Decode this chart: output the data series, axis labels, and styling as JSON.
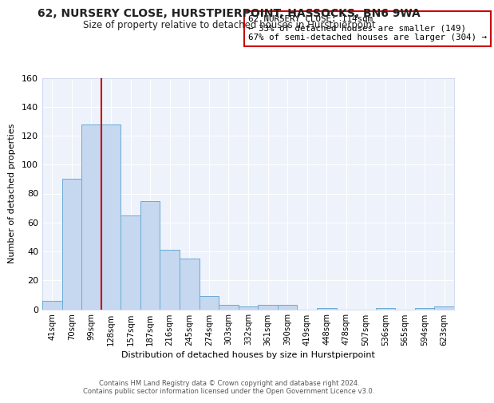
{
  "title": "62, NURSERY CLOSE, HURSTPIERPOINT, HASSOCKS, BN6 9WA",
  "subtitle": "Size of property relative to detached houses in Hurstpierpoint",
  "xlabel": "Distribution of detached houses by size in Hurstpierpoint",
  "ylabel": "Number of detached properties",
  "bar_labels": [
    "41sqm",
    "70sqm",
    "99sqm",
    "128sqm",
    "157sqm",
    "187sqm",
    "216sqm",
    "245sqm",
    "274sqm",
    "303sqm",
    "332sqm",
    "361sqm",
    "390sqm",
    "419sqm",
    "448sqm",
    "478sqm",
    "507sqm",
    "536sqm",
    "565sqm",
    "594sqm",
    "623sqm"
  ],
  "bar_values": [
    6,
    90,
    128,
    128,
    65,
    75,
    41,
    35,
    9,
    3,
    2,
    3,
    3,
    0,
    1,
    0,
    0,
    1,
    0,
    1,
    2
  ],
  "bar_color": "#c5d8f0",
  "bar_edge_color": "#6aaad4",
  "vline_color": "#cc0000",
  "annotation_box_text": "62 NURSERY CLOSE: 114sqm\n← 33% of detached houses are smaller (149)\n67% of semi-detached houses are larger (304) →",
  "annotation_box_edge_color": "#cc0000",
  "ylim": [
    0,
    160
  ],
  "yticks": [
    0,
    20,
    40,
    60,
    80,
    100,
    120,
    140,
    160
  ],
  "footer_line1": "Contains HM Land Registry data © Crown copyright and database right 2024.",
  "footer_line2": "Contains public sector information licensed under the Open Government Licence v3.0.",
  "bg_color": "#ffffff",
  "plot_bg_color": "#eef2fb",
  "grid_color": "#ffffff"
}
